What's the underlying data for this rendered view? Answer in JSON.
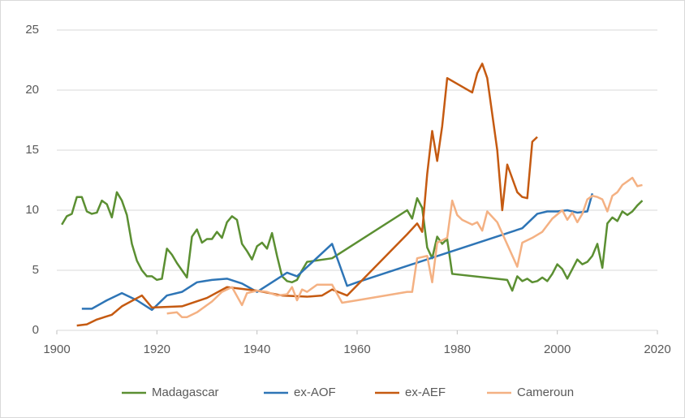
{
  "chart_data": {
    "type": "line",
    "xlim": [
      1900,
      2020
    ],
    "xticks": [
      1900,
      1920,
      1940,
      1960,
      1980,
      2000,
      2020
    ],
    "ylim": [
      0,
      25
    ],
    "yticks": [
      0,
      5,
      10,
      15,
      20,
      25
    ],
    "grid": true,
    "legend": "bottom",
    "series": [
      {
        "name": "Madagascar",
        "color": "#5b8f32",
        "x": [
          1901,
          1902,
          1903,
          1904,
          1905,
          1906,
          1907,
          1908,
          1909,
          1910,
          1911,
          1912,
          1913,
          1914,
          1915,
          1916,
          1917,
          1918,
          1919,
          1920,
          1921,
          1922,
          1923,
          1924,
          1925,
          1926,
          1927,
          1928,
          1929,
          1930,
          1931,
          1932,
          1933,
          1934,
          1935,
          1936,
          1937,
          1938,
          1939,
          1940,
          1941,
          1942,
          1943,
          1944,
          1945,
          1946,
          1947,
          1948,
          1949,
          1950,
          1955,
          1970,
          1971,
          1972,
          1973,
          1974,
          1975,
          1976,
          1977,
          1978,
          1979,
          1990,
          1991,
          1992,
          1993,
          1994,
          1995,
          1996,
          1997,
          1998,
          1999,
          2000,
          2001,
          2002,
          2003,
          2004,
          2005,
          2006,
          2007,
          2008,
          2009,
          2010,
          2011,
          2012,
          2013,
          2014,
          2015,
          2016,
          2017
        ],
        "values": [
          8.8,
          9.5,
          9.7,
          11.1,
          11.1,
          9.9,
          9.7,
          9.8,
          10.8,
          10.5,
          9.4,
          11.5,
          10.8,
          9.6,
          7.2,
          5.8,
          5.0,
          4.5,
          4.5,
          4.2,
          4.3,
          6.8,
          6.3,
          5.6,
          5.0,
          4.4,
          7.8,
          8.4,
          7.3,
          7.6,
          7.6,
          8.2,
          7.7,
          9.0,
          9.5,
          9.2,
          7.2,
          6.6,
          5.9,
          7.0,
          7.3,
          6.8,
          8.1,
          6.2,
          4.5,
          4.1,
          4.0,
          4.2,
          5.0,
          5.7,
          6.0,
          10.0,
          9.3,
          11.0,
          10.2,
          6.9,
          6.0,
          7.8,
          7.2,
          7.6,
          4.7,
          4.2,
          3.3,
          4.5,
          4.1,
          4.3,
          4.0,
          4.1,
          4.4,
          4.1,
          4.7,
          5.5,
          5.1,
          4.3,
          5.1,
          5.9,
          5.5,
          5.7,
          6.2,
          7.2,
          5.2,
          8.9,
          9.4,
          9.1,
          9.9,
          9.6,
          9.9,
          10.4,
          10.8
        ]
      },
      {
        "name": "ex-AOF",
        "color": "#2e75b6",
        "x": [
          1905,
          1907,
          1910,
          1913,
          1916,
          1919,
          1922,
          1925,
          1928,
          1931,
          1934,
          1937,
          1940,
          1943,
          1946,
          1948,
          1955,
          1958,
          1960,
          1993,
          1996,
          1998,
          2000,
          2002,
          2004,
          2006,
          2007
        ],
        "values": [
          1.8,
          1.8,
          2.5,
          3.1,
          2.5,
          1.7,
          2.9,
          3.2,
          4.0,
          4.2,
          4.3,
          3.9,
          3.2,
          4.0,
          4.8,
          4.5,
          7.2,
          3.7,
          4.0,
          8.5,
          9.7,
          9.9,
          9.9,
          10.0,
          9.8,
          9.9,
          11.4
        ]
      },
      {
        "name": "ex-AEF",
        "color": "#c55a11",
        "x": [
          1904,
          1906,
          1908,
          1911,
          1913,
          1917,
          1919,
          1925,
          1930,
          1934,
          1940,
          1945,
          1950,
          1953,
          1955,
          1958,
          1970,
          1972,
          1973,
          1974,
          1975,
          1976,
          1977,
          1978,
          1983,
          1984,
          1985,
          1986,
          1988,
          1989,
          1990,
          1992,
          1993,
          1994,
          1995,
          1996
        ],
        "values": [
          0.4,
          0.5,
          0.9,
          1.3,
          2.0,
          2.9,
          1.9,
          2.0,
          2.7,
          3.6,
          3.3,
          2.9,
          2.8,
          2.9,
          3.4,
          2.9,
          8.0,
          8.9,
          8.2,
          13.0,
          16.6,
          14.1,
          17.0,
          21.0,
          19.8,
          21.4,
          22.2,
          21.0,
          15.0,
          10.0,
          13.8,
          11.5,
          11.1,
          11.0,
          15.7,
          16.1
        ]
      },
      {
        "name": "Cameroun",
        "color": "#f4b183",
        "x": [
          1922,
          1924,
          1925,
          1926,
          1928,
          1931,
          1933,
          1935,
          1937,
          1938,
          1940,
          1942,
          1944,
          1946,
          1947,
          1948,
          1949,
          1950,
          1952,
          1955,
          1957,
          1960,
          1970,
          1971,
          1972,
          1974,
          1975,
          1976,
          1977,
          1978,
          1979,
          1980,
          1981,
          1983,
          1984,
          1985,
          1986,
          1988,
          1992,
          1993,
          1995,
          1997,
          1999,
          2001,
          2002,
          2003,
          2004,
          2005,
          2006,
          2007,
          2008,
          2009,
          2010,
          2011,
          2012,
          2013,
          2014,
          2015,
          2016,
          2017
        ],
        "values": [
          1.4,
          1.5,
          1.1,
          1.1,
          1.5,
          2.4,
          3.2,
          3.6,
          2.1,
          3.1,
          3.3,
          3.2,
          2.9,
          3.0,
          3.6,
          2.5,
          3.4,
          3.2,
          3.8,
          3.8,
          2.3,
          2.5,
          3.2,
          3.2,
          6.0,
          6.2,
          4.0,
          7.3,
          7.5,
          7.7,
          10.8,
          9.6,
          9.2,
          8.8,
          9.0,
          8.3,
          9.9,
          9.0,
          5.3,
          7.3,
          7.7,
          8.2,
          9.3,
          10.0,
          9.2,
          9.8,
          9.0,
          9.7,
          10.9,
          11.2,
          11.1,
          10.9,
          9.9,
          11.2,
          11.5,
          12.1,
          12.4,
          12.7,
          12.0,
          12.1
        ]
      }
    ]
  }
}
